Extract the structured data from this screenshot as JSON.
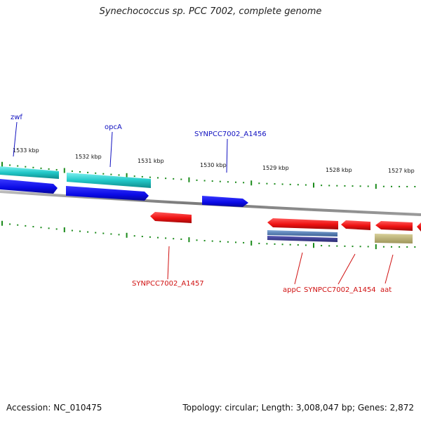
{
  "title": "Synechococcus sp. PCC 7002, complete genome",
  "footer": {
    "accession": "Accession: NC_010475",
    "summary": "Topology: circular; Length: 3,008,047 bp; Genes: 2,872"
  },
  "ruler": {
    "labels": [
      "1533 kbp",
      "1532 kbp",
      "1531 kbp",
      "1530 kbp",
      "1529 kbp",
      "1528 kbp",
      "1527 kbp"
    ]
  },
  "colors": {
    "cyan_track": "#22c8c8",
    "blue_track": "#0a0ae6",
    "red_track": "#ee1111",
    "steel_track": "#4a78b0",
    "purple_track": "#3a3a90",
    "olive_track": "#bdb57a",
    "backbone": "#888888",
    "tick": "#1a8a1a",
    "plus_label": "#1010c0",
    "minus_label": "#d01010"
  },
  "gene_labels": {
    "zwf": "zwf",
    "opcA": "opcA",
    "a1456": "SYNPCC7002_A1456",
    "a1457": "SYNPCC7002_A1457",
    "appC": "appC",
    "a1454": "SYNPCC7002_A1454",
    "aat": "aat"
  }
}
